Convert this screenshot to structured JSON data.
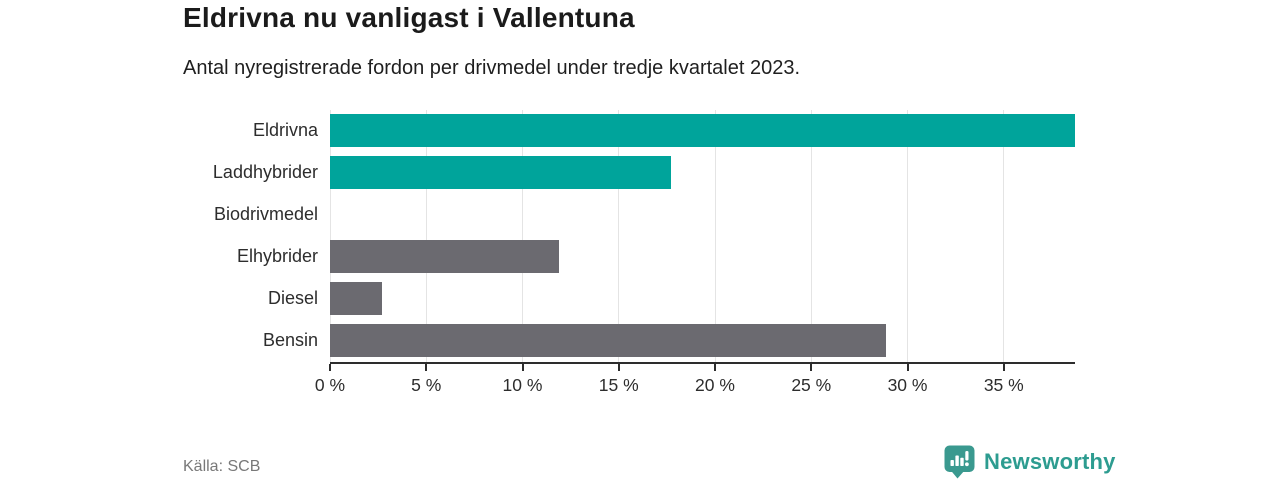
{
  "chart": {
    "title": "Eldrivna nu vanligast i Vallentuna",
    "subtitle": "Antal nyregistrerade fordon per drivmedel under tredje kvartalet 2023.",
    "source": "Källa: SCB"
  },
  "chart_data": {
    "type": "bar",
    "orientation": "horizontal",
    "title": "Eldrivna nu vanligast i Vallentuna",
    "subtitle": "Antal nyregistrerade fordon per drivmedel under tredje kvartalet 2023.",
    "categories": [
      "Eldrivna",
      "Laddhybrider",
      "Biodrivmedel",
      "Elhybrider",
      "Diesel",
      "Bensin"
    ],
    "values": [
      38.7,
      17.7,
      0,
      11.9,
      2.7,
      28.9
    ],
    "unit": "%",
    "bar_colors": [
      "#00a49b",
      "#00a49b",
      "#00a49b",
      "#6b6a70",
      "#6b6a70",
      "#6b6a70"
    ],
    "xlim": [
      0,
      38.7
    ],
    "x_ticks": [
      0,
      5,
      10,
      15,
      20,
      25,
      30,
      35
    ],
    "x_tick_labels": [
      "0 %",
      "5 %",
      "10 %",
      "15 %",
      "20 %",
      "25 %",
      "30 %",
      "35 %"
    ],
    "grid": true,
    "legend": false,
    "xlabel": "",
    "ylabel": ""
  },
  "branding": {
    "logo_text": "Newsworthy",
    "logo_icon": "newsworthy-chart-bubble-icon",
    "accent_color": "#2d9c90",
    "icon_color": "#3a998f"
  },
  "colors": {
    "teal_bar": "#00a49b",
    "gray_bar": "#6b6a70",
    "gridline": "#e4e4e4",
    "axis": "#2d2d2d",
    "title_text": "#1b1b1b",
    "source_text": "#787878"
  }
}
